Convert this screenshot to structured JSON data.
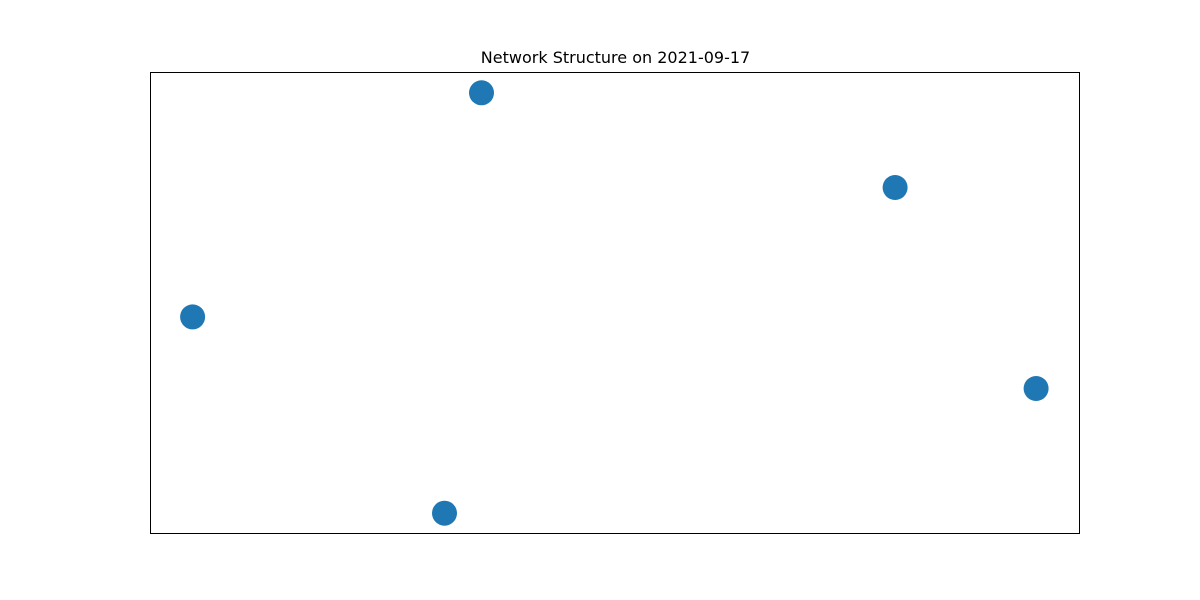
{
  "chart_data": {
    "type": "scatter",
    "title": "Network Structure on 2021-09-17",
    "node_color": "#1f77b4",
    "frame_color": "#000000",
    "axes_visible": false,
    "grid": false,
    "nodes": [
      {
        "x": -0.72,
        "y": 0.96
      },
      {
        "x": 1.07,
        "y": 0.55
      },
      {
        "x": -1.97,
        "y": -0.01
      },
      {
        "x": 1.68,
        "y": -0.32
      },
      {
        "x": -0.88,
        "y": -0.86
      }
    ],
    "xlim": [
      -2.15,
      1.87
    ],
    "ylim": [
      -0.95,
      1.05
    ]
  }
}
